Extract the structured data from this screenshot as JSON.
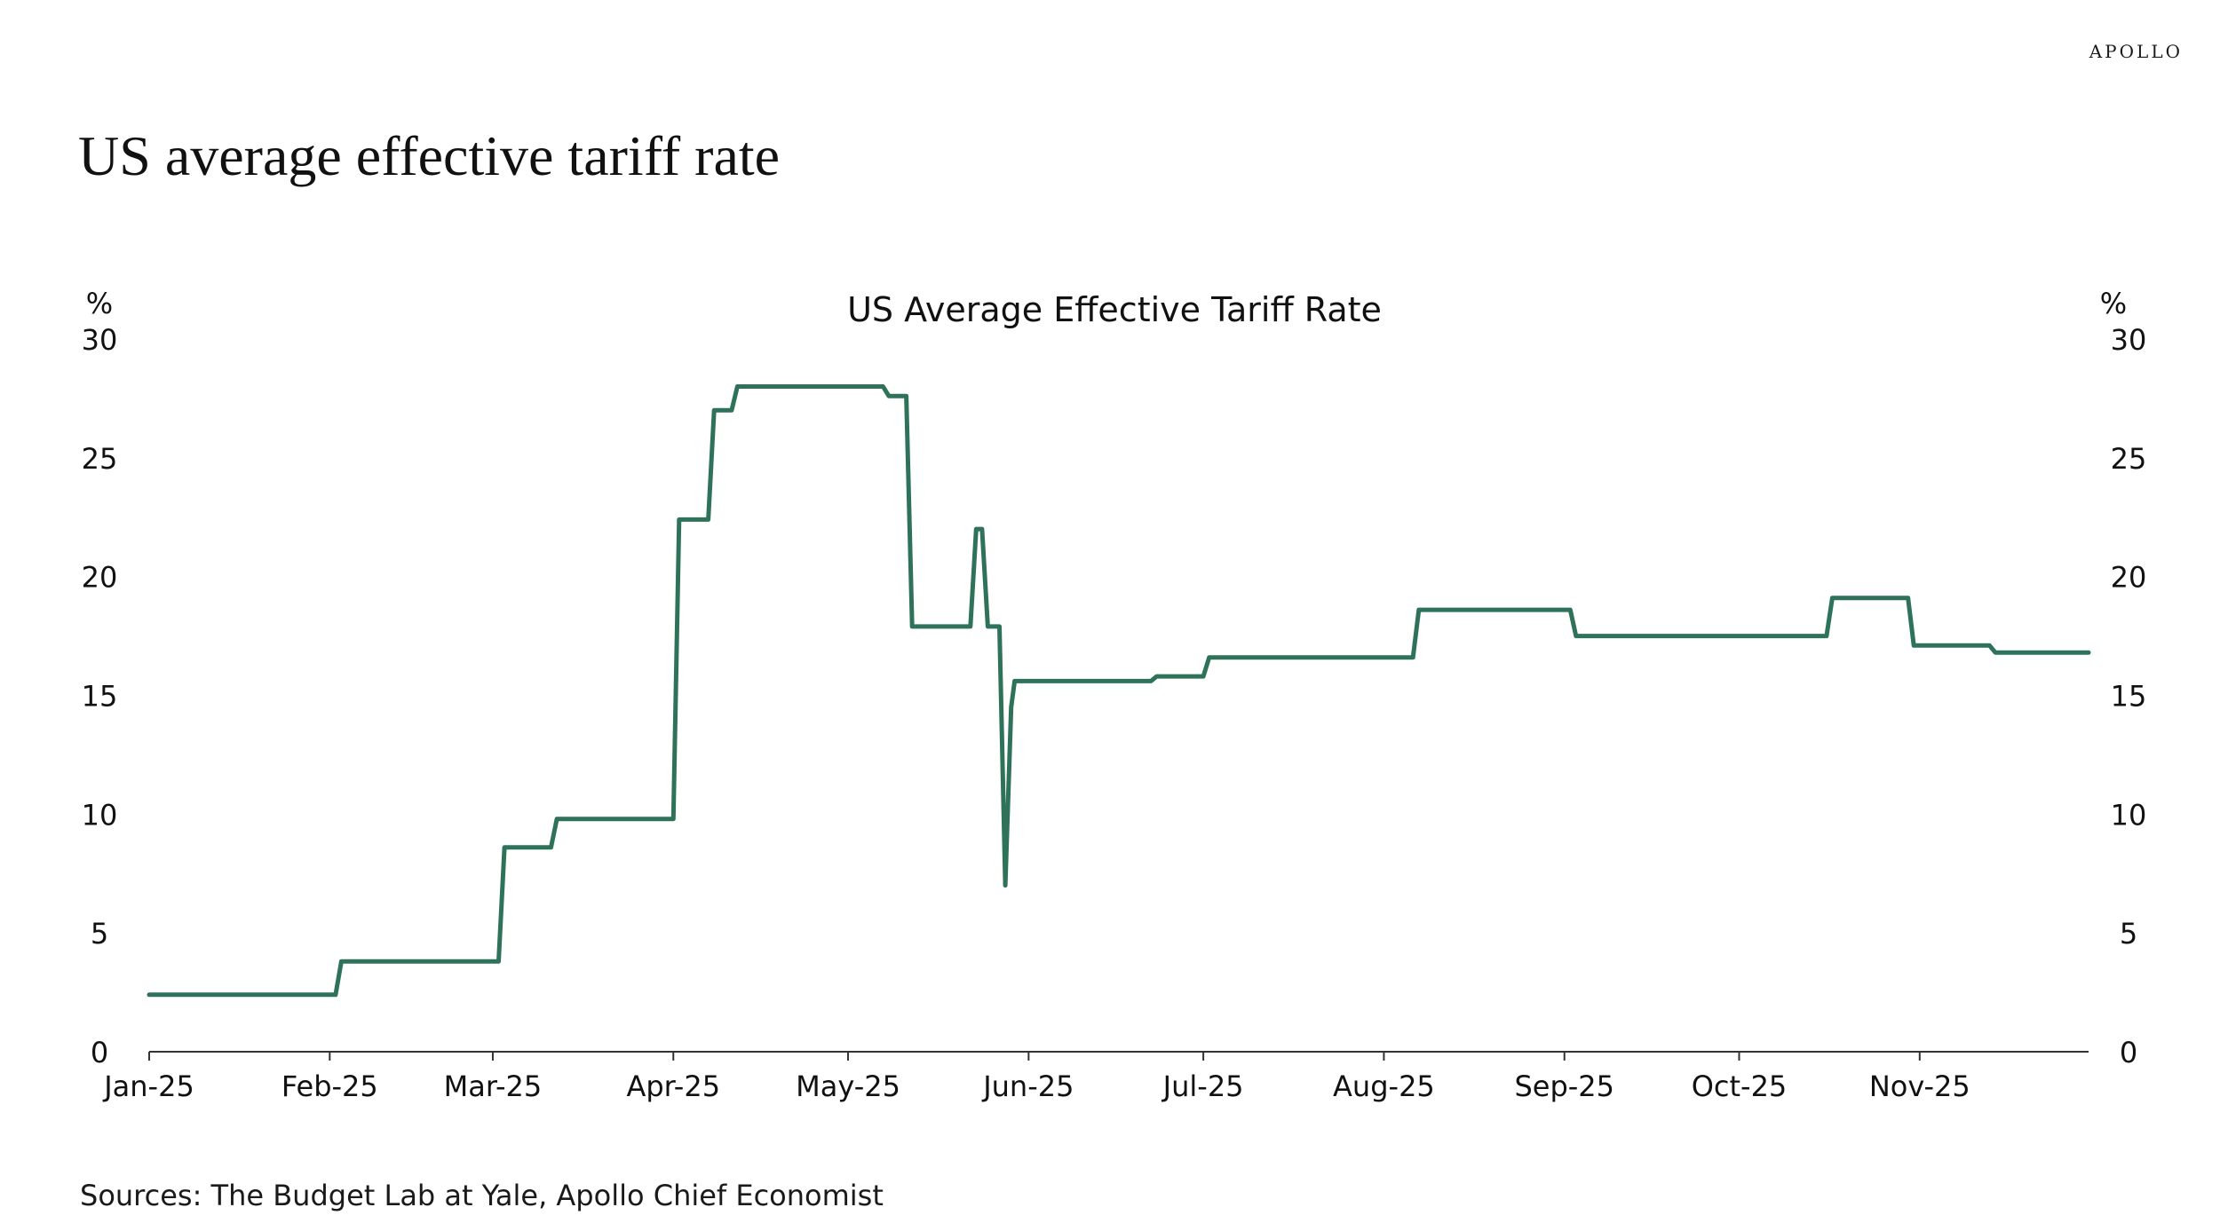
{
  "header": {
    "logo_text": "APOLLO",
    "page_title": "US average effective tariff rate"
  },
  "footer": {
    "sources": "Sources: The Budget Lab at Yale, Apollo Chief Economist"
  },
  "colors": {
    "series": "#2e7359",
    "text": "#111111",
    "axis": "#333333"
  },
  "chart_data": {
    "type": "line",
    "title": "US Average Effective Tariff Rate",
    "ylabel_left": "%",
    "ylabel_right": "%",
    "ylim": [
      0,
      30
    ],
    "yticks": [
      0,
      5,
      10,
      15,
      20,
      25,
      30
    ],
    "x_unit": "days since Jan 1, 2025",
    "xlim": [
      0,
      333
    ],
    "xticks": [
      {
        "label": "Jan-25",
        "day": 0
      },
      {
        "label": "Feb-25",
        "day": 31
      },
      {
        "label": "Mar-25",
        "day": 59
      },
      {
        "label": "Apr-25",
        "day": 90
      },
      {
        "label": "May-25",
        "day": 120
      },
      {
        "label": "Jun-25",
        "day": 151
      },
      {
        "label": "Jul-25",
        "day": 181
      },
      {
        "label": "Aug-25",
        "day": 212
      },
      {
        "label": "Sep-25",
        "day": 243
      },
      {
        "label": "Oct-25",
        "day": 273
      },
      {
        "label": "Nov-25",
        "day": 304
      }
    ],
    "legend": "none",
    "series": [
      {
        "name": "US Average Effective Tariff Rate",
        "x": [
          0,
          32,
          33,
          60,
          61,
          69,
          70,
          90,
          91,
          96,
          97,
          100,
          101,
          126,
          127,
          130,
          131,
          141,
          142,
          143,
          144,
          146,
          147,
          148,
          148.6,
          149.2,
          150,
          172,
          173,
          181,
          182,
          217,
          218,
          244,
          245,
          288,
          289,
          302,
          303,
          316,
          317,
          333
        ],
        "y": [
          2.4,
          2.4,
          3.8,
          3.8,
          8.6,
          8.6,
          9.8,
          9.8,
          22.4,
          22.4,
          27,
          27,
          28,
          28,
          27.6,
          27.6,
          17.9,
          17.9,
          22,
          22,
          17.9,
          17.9,
          7,
          14.5,
          15.6,
          15.6,
          15.6,
          15.6,
          15.8,
          15.8,
          16.6,
          16.6,
          18.6,
          18.6,
          17.5,
          17.5,
          19.1,
          19.1,
          17.1,
          17.1,
          16.8,
          16.8
        ]
      }
    ]
  }
}
